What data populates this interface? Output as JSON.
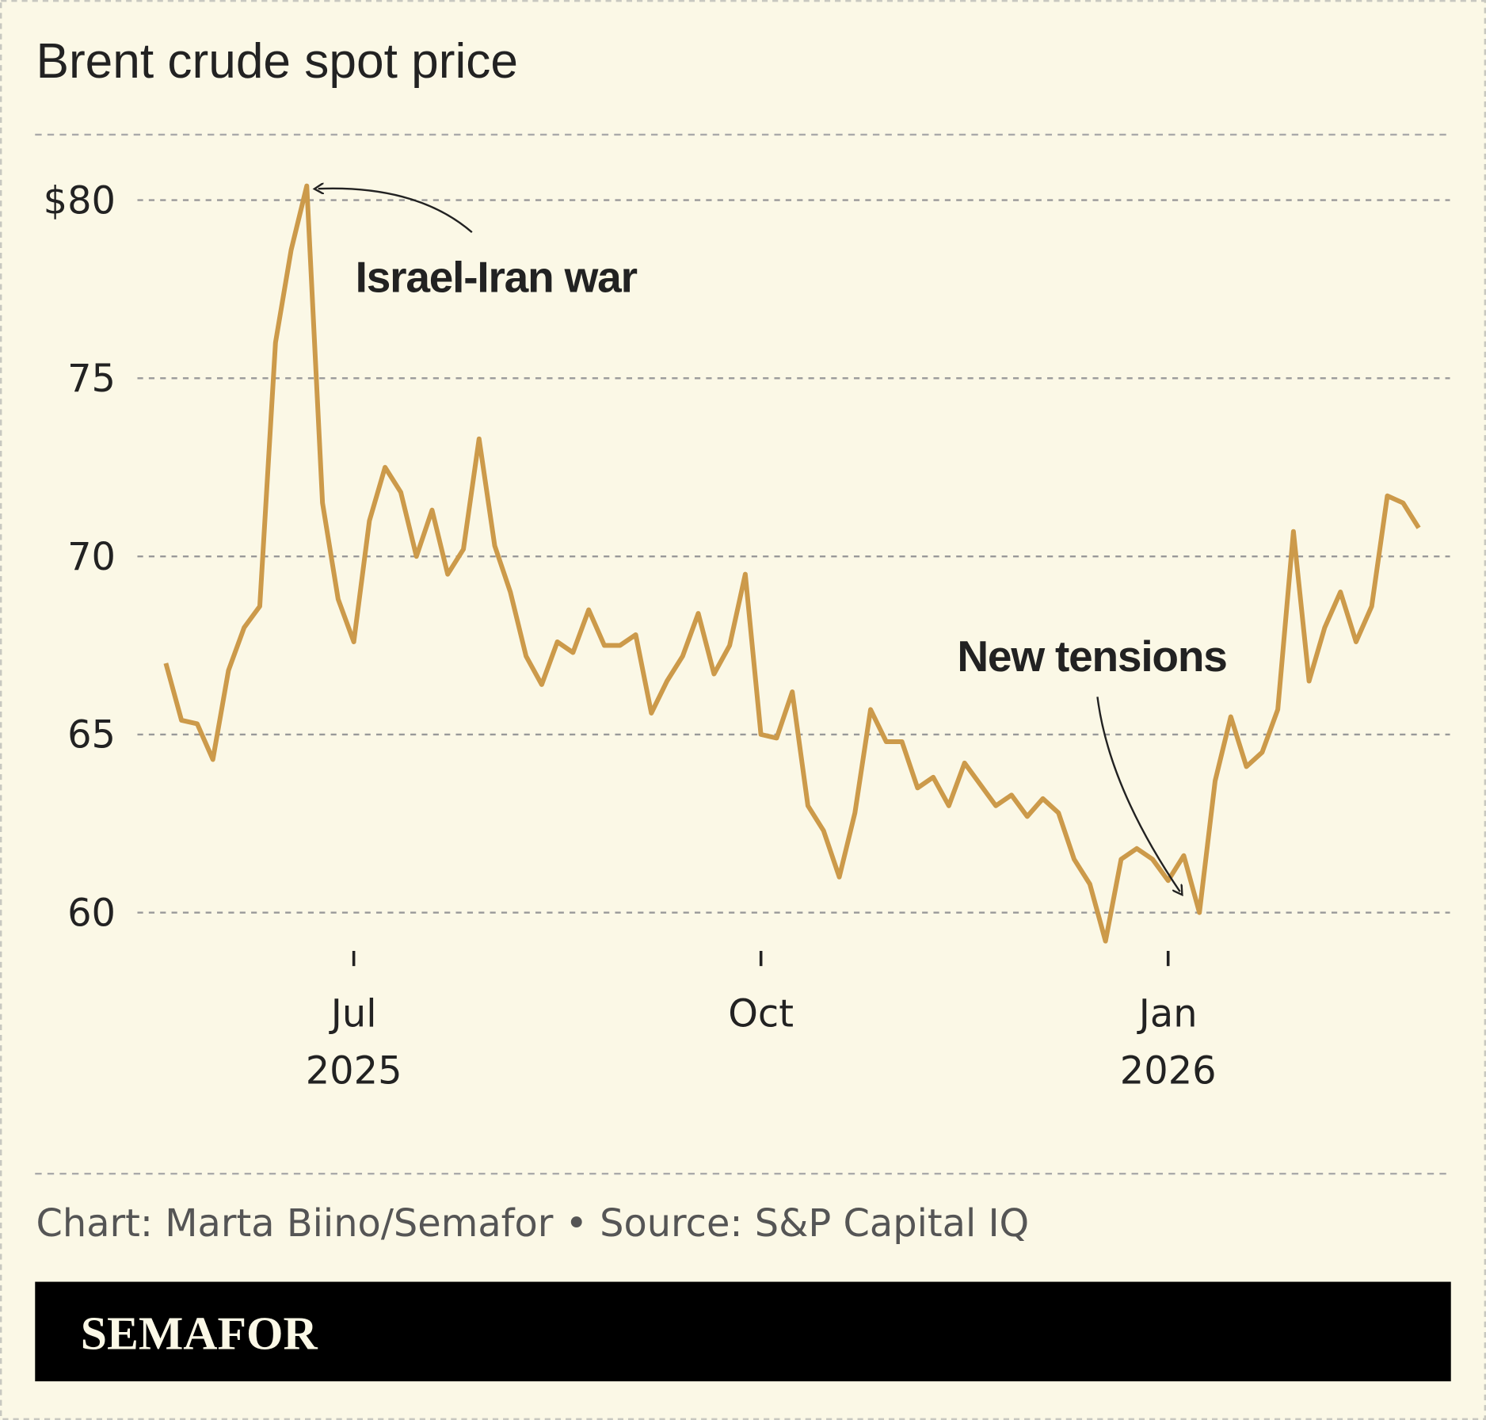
{
  "chart_data": {
    "type": "line",
    "title": "Brent crude spot price",
    "categories": [
      null,
      null,
      null,
      null,
      null,
      null,
      null,
      null,
      null,
      null,
      null,
      null,
      "Jul 2025",
      null,
      null,
      null,
      null,
      null,
      null,
      null,
      null,
      null,
      null,
      null,
      null,
      null,
      null,
      null,
      null,
      null,
      null,
      null,
      null,
      null,
      null,
      null,
      null,
      null,
      "Oct",
      null,
      null,
      null,
      null,
      null,
      null,
      null,
      null,
      null,
      null,
      null,
      null,
      null,
      null,
      null,
      null,
      null,
      null,
      null,
      null,
      null,
      null,
      null,
      null,
      null,
      "Jan 2026",
      null,
      null,
      null,
      null,
      null,
      null,
      null,
      null,
      null,
      null,
      null,
      null,
      null,
      null,
      null,
      null
    ],
    "series": [
      {
        "color": "#cc9a4a",
        "values": [
          67.0,
          65.4,
          65.3,
          64.3,
          66.8,
          68.0,
          68.6,
          76.0,
          78.6,
          80.4,
          71.5,
          68.8,
          67.6,
          71.0,
          72.5,
          71.8,
          70.0,
          71.3,
          69.5,
          70.2,
          73.3,
          70.3,
          69.0,
          67.2,
          66.4,
          67.6,
          67.3,
          68.5,
          67.5,
          67.5,
          67.8,
          65.6,
          66.5,
          67.2,
          68.4,
          66.7,
          67.5,
          69.5,
          65.0,
          64.9,
          66.2,
          63.0,
          62.3,
          61.0,
          62.8,
          65.7,
          64.8,
          64.8,
          63.5,
          63.8,
          63.0,
          64.2,
          63.6,
          63.0,
          63.3,
          62.7,
          63.2,
          62.8,
          61.5,
          60.8,
          59.2,
          61.5,
          61.8,
          61.5,
          60.9,
          61.6,
          60.0,
          63.7,
          65.5,
          64.1,
          64.5,
          65.7,
          70.7,
          66.5,
          68.0,
          69.0,
          67.6,
          68.6,
          71.7,
          71.5,
          70.8
        ]
      }
    ],
    "ylim": [
      58.5,
      81.2
    ],
    "yticks": [
      {
        "value": 80,
        "label": "$80"
      },
      75,
      70,
      65,
      60
    ],
    "grid": true,
    "annotations": [
      {
        "text": "Israel-Iran war",
        "index": 9
      },
      {
        "text": "New tensions",
        "index": 65
      }
    ],
    "footer": "Chart: Marta Biino/Semafor • Source: S&P Capital IQ",
    "logo": "SEMAFOR"
  }
}
